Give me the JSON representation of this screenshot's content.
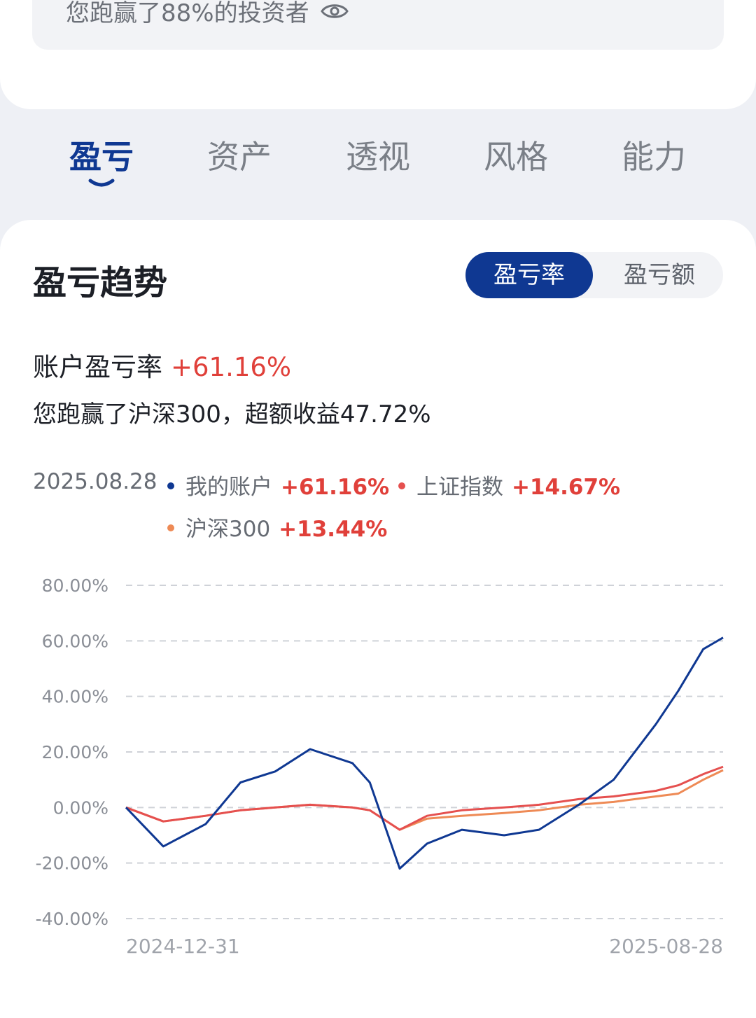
{
  "top": {
    "beat_text": "您跑赢了88%的投资者",
    "eye_icon": "eye-icon"
  },
  "tabs": [
    "盈亏",
    "资产",
    "透视",
    "风格",
    "能力"
  ],
  "active_tab": 0,
  "section": {
    "title": "盈亏趋势",
    "toggle": [
      "盈亏率",
      "盈亏额"
    ],
    "rate_label": "账户盈亏率",
    "rate_value": "+61.16%",
    "beat_line": "您跑赢了沪深300，超额收益47.72%"
  },
  "legend": {
    "date": "2025.08.28",
    "items": [
      {
        "name": "我的账户",
        "value": "+61.16%",
        "color": "#0f3892"
      },
      {
        "name": "上证指数",
        "value": "+14.67%",
        "color": "#e5504f"
      },
      {
        "name": "沪深300",
        "value": "+13.44%",
        "color": "#ee8a55"
      }
    ]
  },
  "colors": {
    "brand": "#0f3892",
    "up": "#e0403a"
  },
  "chart_data": {
    "type": "line",
    "ylim": [
      -40,
      80
    ],
    "yticks": [
      80,
      60,
      40,
      20,
      0,
      -20,
      -40
    ],
    "ytick_labels": [
      "80.00%",
      "60.00%",
      "40.00%",
      "20.00%",
      "0.00%",
      "-20.00%",
      "-40.00%"
    ],
    "x_start": "2024-12-31",
    "x_end": "2025-08-28",
    "grid": true,
    "x": [
      "2024-12-31",
      "2025-01-15",
      "2025-02-01",
      "2025-02-15",
      "2025-03-01",
      "2025-03-15",
      "2025-04-01",
      "2025-04-08",
      "2025-04-20",
      "2025-05-01",
      "2025-05-15",
      "2025-06-01",
      "2025-06-15",
      "2025-07-01",
      "2025-07-15",
      "2025-08-01",
      "2025-08-10",
      "2025-08-20",
      "2025-08-28"
    ],
    "series": [
      {
        "name": "我的账户",
        "values": [
          0,
          -14,
          -6,
          9,
          13,
          21,
          16,
          9,
          -22,
          -13,
          -8,
          -10,
          -8,
          1,
          10,
          30,
          42,
          57,
          61.16
        ]
      },
      {
        "name": "上证指数",
        "values": [
          0,
          -5,
          -3,
          -1,
          0,
          1,
          0,
          -1,
          -8,
          -3,
          -1,
          0,
          1,
          3,
          4,
          6,
          8,
          12,
          14.67
        ]
      },
      {
        "name": "沪深300",
        "values": [
          0,
          -5,
          -3,
          -1,
          0,
          1,
          0,
          -1,
          -8,
          -4,
          -3,
          -2,
          -1,
          1,
          2,
          4,
          5,
          10,
          13.44
        ]
      }
    ]
  }
}
